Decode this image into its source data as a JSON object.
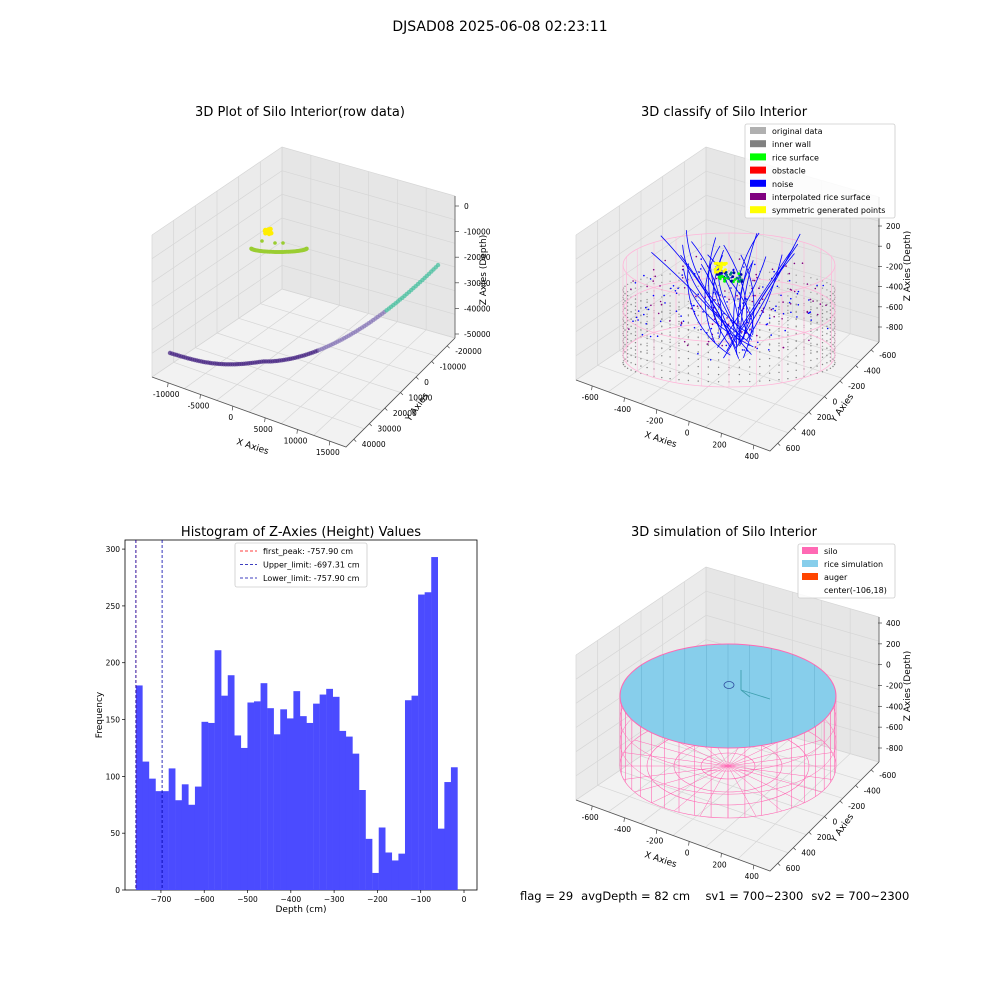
{
  "figure": {
    "suptitle": "DJSAD08 2025-06-08 02:23:11"
  },
  "footer": {
    "flag": "flag = 29",
    "avg_depth": "avgDepth = 82 cm",
    "sv1": "sv1 = 700~2300",
    "sv2": "sv2 = 700~2300"
  },
  "chart_data": [
    {
      "type": "scatter",
      "projection": "3d",
      "title": "3D Plot of Silo Interior(row data)",
      "xlabel": "X Axies",
      "ylabel": "Y Axies",
      "zlabel": "Z Axies (Depth)",
      "x_ticks": [
        "-10000",
        "-5000",
        "0",
        "5000",
        "10000",
        "15000"
      ],
      "y_ticks": [
        "-20000",
        "-10000",
        "0",
        "10000",
        "20000",
        "30000",
        "40000"
      ],
      "z_ticks": [
        "0",
        "-10000",
        "-20000",
        "-30000",
        "-40000",
        "-50000"
      ],
      "xlim": [
        -12000,
        18000
      ],
      "ylim": [
        -22000,
        42000
      ],
      "zlim": [
        -55000,
        2000
      ],
      "colors": {
        "arc_start": "#4b2a86",
        "arc_mid": "#8a79b8",
        "arc_end": "#49c0a0",
        "ring": "#9acd32",
        "blob": "#ffee00"
      }
    },
    {
      "type": "scatter",
      "projection": "3d",
      "title": "3D classify of Silo Interior",
      "zlabel": "Z Axies (Depth)",
      "xlabel": "X Axies",
      "ylabel": "Y Axies",
      "x_ticks": [
        "-600",
        "-400",
        "-200",
        "0",
        "200",
        "400"
      ],
      "y_ticks": [
        "-600",
        "-400",
        "-200",
        "0",
        "200",
        "400",
        "600"
      ],
      "z_ticks": [
        "200",
        "0",
        "-200",
        "-400",
        "-600",
        "-800"
      ],
      "xlim": [
        -700,
        500
      ],
      "ylim": [
        -650,
        650
      ],
      "zlim": [
        -900,
        250
      ],
      "legend_placement": "upper-right",
      "legend": [
        {
          "label": "original data",
          "color": "#b0b0b0"
        },
        {
          "label": "inner wall",
          "color": "#808080"
        },
        {
          "label": "rice surface",
          "color": "#00ff00"
        },
        {
          "label": "obstacle",
          "color": "#ff0000"
        },
        {
          "label": "noise",
          "color": "#0000ff"
        },
        {
          "label": "interpolated rice surface",
          "color": "#800080"
        },
        {
          "label": "symmetric generated points",
          "color": "#ffff00"
        }
      ]
    },
    {
      "type": "bar",
      "title": "Histogram of Z-Axies (Height) Values",
      "xlabel": "Depth (cm)",
      "ylabel": "Frequency",
      "bar_color": "#4b4bff",
      "bin_start": -757.9,
      "bin_width": 15.16,
      "values": [
        180,
        113,
        98,
        87,
        87,
        107,
        79,
        93,
        75,
        91,
        148,
        147,
        211,
        171,
        189,
        136,
        125,
        165,
        166,
        182,
        160,
        137,
        159,
        151,
        175,
        153,
        147,
        164,
        172,
        177,
        170,
        140,
        135,
        120,
        88,
        45,
        15,
        55,
        33,
        26,
        32,
        167,
        171,
        260,
        262,
        293,
        54,
        95,
        108
      ],
      "xlim": [
        -783,
        30
      ],
      "ylim": [
        0,
        308
      ],
      "x_ticks": [
        -700,
        -600,
        -500,
        -400,
        -300,
        -200,
        -100,
        0
      ],
      "x_tick_labels": [
        "−700",
        "−600",
        "−500",
        "−400",
        "−300",
        "−200",
        "−100",
        "0"
      ],
      "y_ticks": [
        0,
        50,
        100,
        150,
        200,
        250,
        300
      ],
      "y_tick_labels": [
        "0",
        "50",
        "100",
        "150",
        "200",
        "250",
        "300"
      ],
      "vlines": [
        {
          "x": -757.9,
          "color": "#ff0000",
          "label": "first_peak: -757.90 cm"
        },
        {
          "x": -697.31,
          "color": "#0000aa",
          "label": "Upper_limit: -697.31 cm"
        },
        {
          "x": -757.9,
          "color": "#0000aa",
          "label": "Lower_limit: -757.90 cm"
        }
      ],
      "legend_placement": "top-center"
    },
    {
      "type": "surface",
      "projection": "3d",
      "title": "3D simulation of Silo Interior",
      "zlabel": "Z Axies (Depth)",
      "xlabel": "X Axies",
      "ylabel": "Y Axies",
      "x_ticks": [
        "-600",
        "-400",
        "-200",
        "0",
        "200",
        "400"
      ],
      "y_ticks": [
        "-600",
        "-400",
        "-200",
        "0",
        "200",
        "400",
        "600"
      ],
      "z_ticks": [
        "400",
        "200",
        "0",
        "-200",
        "-400",
        "-600",
        "-800"
      ],
      "legend_placement": "upper-right",
      "legend": [
        {
          "label": "silo",
          "color": "#ff69b4"
        },
        {
          "label": "rice simulation",
          "color": "#87ceeb"
        },
        {
          "label": "auger",
          "color": "#ff4500"
        },
        {
          "label": "center(-106,18)",
          "color": "none"
        }
      ]
    }
  ]
}
